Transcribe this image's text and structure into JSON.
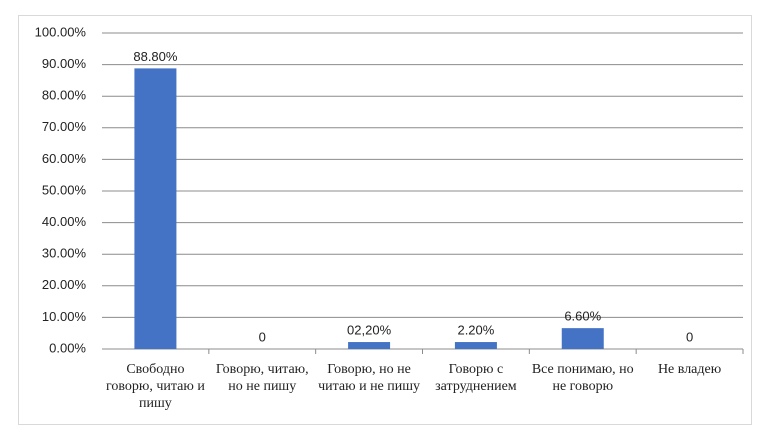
{
  "chart_data": {
    "type": "bar",
    "categories": [
      "Свободно говорю, читаю и пишу",
      "Говорю, читаю, но не пишу",
      "Говорю, но не читаю и не пишу",
      "Говорю с затруднением",
      "Все понимаю, но не говорю",
      "Не владею"
    ],
    "values": [
      88.8,
      0,
      2.2,
      2.2,
      6.6,
      0
    ],
    "value_labels": [
      "88.80%",
      "0",
      "02,20%",
      "2.20%",
      "6.60%",
      "0"
    ],
    "color": "#4472c4",
    "ylim": [
      0,
      100
    ],
    "yticks": [
      {
        "value": 0,
        "label": "0.00%"
      },
      {
        "value": 10,
        "label": "10.00%"
      },
      {
        "value": 20,
        "label": "20.00%"
      },
      {
        "value": 30,
        "label": "30.00%"
      },
      {
        "value": 40,
        "label": "40.00%"
      },
      {
        "value": 50,
        "label": "50.00%"
      },
      {
        "value": 60,
        "label": "60.00%"
      },
      {
        "value": 70,
        "label": "70.00%"
      },
      {
        "value": 80,
        "label": "80.00%"
      },
      {
        "value": 90,
        "label": "90.00%"
      },
      {
        "value": 100,
        "label": "100.00%"
      }
    ],
    "grid": true
  }
}
